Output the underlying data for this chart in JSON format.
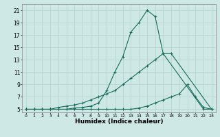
{
  "xlabel": "Humidex (Indice chaleur)",
  "bg_color": "#cde8e5",
  "grid_color": "#b8d4d2",
  "line_color": "#1a6b5a",
  "xlim": [
    -0.5,
    23.5
  ],
  "ylim": [
    4.5,
    22
  ],
  "xticks": [
    0,
    1,
    2,
    3,
    4,
    5,
    6,
    7,
    8,
    9,
    10,
    11,
    12,
    13,
    14,
    15,
    16,
    17,
    18,
    19,
    20,
    21,
    22,
    23
  ],
  "yticks": [
    5,
    7,
    9,
    11,
    13,
    15,
    17,
    19,
    21
  ],
  "line1_x": [
    0,
    1,
    2,
    3,
    4,
    5,
    6,
    7,
    8,
    9,
    10,
    11,
    12,
    13,
    14,
    15,
    16,
    17,
    22,
    23
  ],
  "line1_y": [
    5,
    5,
    5,
    5,
    5,
    5,
    5.2,
    5.3,
    5.5,
    6,
    8,
    11,
    13.5,
    17.5,
    19,
    21,
    20,
    14,
    5,
    5
  ],
  "line2_x": [
    0,
    1,
    2,
    3,
    4,
    5,
    6,
    7,
    8,
    9,
    10,
    11,
    12,
    13,
    14,
    15,
    16,
    17,
    18,
    23
  ],
  "line2_y": [
    5,
    5,
    5,
    5,
    5.3,
    5.5,
    5.7,
    6,
    6.5,
    7,
    7.5,
    8,
    9,
    10,
    11,
    12,
    13,
    14,
    14,
    5
  ],
  "line3_x": [
    0,
    1,
    2,
    3,
    4,
    5,
    6,
    7,
    8,
    9,
    10,
    11,
    12,
    13,
    14,
    15,
    16,
    17,
    18,
    19,
    20,
    21,
    22,
    23
  ],
  "line3_y": [
    5,
    5,
    5,
    5,
    5,
    5,
    5,
    5,
    5,
    5,
    5,
    5,
    5,
    5,
    5.2,
    5.5,
    6,
    6.5,
    7,
    7.5,
    9,
    7,
    5.3,
    5
  ],
  "marker": "+"
}
